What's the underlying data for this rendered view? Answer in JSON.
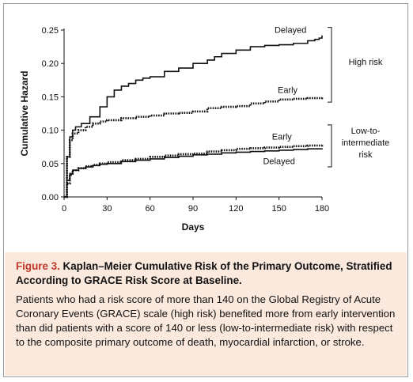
{
  "chart_data": {
    "type": "line",
    "xlabel": "Days",
    "ylabel": "Cumulative Hazard",
    "xlim": [
      0,
      180
    ],
    "ylim": [
      0,
      0.25
    ],
    "x_ticks": [
      "0",
      "30",
      "60",
      "90",
      "120",
      "150",
      "180"
    ],
    "y_ticks": [
      "0.00",
      "0.05",
      "0.10",
      "0.15",
      "0.20",
      "0.25"
    ],
    "grid": false,
    "series": [
      {
        "name": "Delayed",
        "group": "High risk",
        "style": "solid",
        "x": [
          0,
          2,
          4,
          6,
          8,
          12,
          18,
          25,
          30,
          35,
          40,
          45,
          50,
          55,
          60,
          70,
          80,
          90,
          100,
          105,
          110,
          120,
          130,
          140,
          150,
          160,
          170,
          175,
          178,
          180
        ],
        "y": [
          0,
          0.06,
          0.09,
          0.1,
          0.105,
          0.11,
          0.12,
          0.135,
          0.15,
          0.16,
          0.166,
          0.17,
          0.175,
          0.178,
          0.18,
          0.188,
          0.193,
          0.2,
          0.205,
          0.21,
          0.215,
          0.22,
          0.225,
          0.227,
          0.228,
          0.23,
          0.234,
          0.236,
          0.238,
          0.242
        ]
      },
      {
        "name": "Early",
        "group": "High risk",
        "style": "dotted",
        "x": [
          0,
          2,
          4,
          6,
          10,
          15,
          20,
          25,
          30,
          40,
          50,
          60,
          70,
          80,
          90,
          100,
          110,
          120,
          130,
          140,
          150,
          160,
          170,
          180
        ],
        "y": [
          0,
          0.06,
          0.085,
          0.095,
          0.1,
          0.105,
          0.11,
          0.113,
          0.115,
          0.118,
          0.12,
          0.122,
          0.125,
          0.126,
          0.128,
          0.133,
          0.135,
          0.136,
          0.14,
          0.143,
          0.146,
          0.147,
          0.148,
          0.149
        ]
      },
      {
        "name": "Early",
        "group": "Low-to-intermediate risk",
        "style": "dotted",
        "x": [
          0,
          2,
          4,
          6,
          10,
          15,
          20,
          25,
          30,
          40,
          50,
          60,
          70,
          80,
          90,
          100,
          110,
          120,
          130,
          140,
          150,
          160,
          170,
          180
        ],
        "y": [
          0,
          0.02,
          0.033,
          0.04,
          0.043,
          0.046,
          0.048,
          0.05,
          0.052,
          0.055,
          0.057,
          0.06,
          0.062,
          0.064,
          0.065,
          0.068,
          0.07,
          0.072,
          0.073,
          0.074,
          0.075,
          0.076,
          0.077,
          0.078
        ]
      },
      {
        "name": "Delayed",
        "group": "Low-to-intermediate risk",
        "style": "solid",
        "x": [
          0,
          2,
          4,
          6,
          10,
          15,
          20,
          25,
          30,
          40,
          50,
          60,
          70,
          80,
          90,
          100,
          110,
          120,
          130,
          140,
          150,
          160,
          170,
          180
        ],
        "y": [
          0,
          0.025,
          0.035,
          0.04,
          0.043,
          0.045,
          0.047,
          0.049,
          0.05,
          0.053,
          0.055,
          0.057,
          0.059,
          0.061,
          0.063,
          0.064,
          0.066,
          0.067,
          0.068,
          0.069,
          0.07,
          0.071,
          0.072,
          0.073
        ]
      }
    ],
    "annotations": {
      "high_delayed": "Delayed",
      "high_early": "Early",
      "low_early": "Early",
      "low_delayed": "Delayed",
      "high_risk_label": "High risk",
      "low_risk_label_lines": [
        "Low-to-",
        "intermediate",
        "risk"
      ]
    }
  },
  "caption": {
    "figure_label": "Figure 3.",
    "title": "Kaplan–Meier Cumulative Risk of the Primary Outcome, Stratified According to GRACE Risk Score at Baseline.",
    "body": "Patients who had a risk score of more than 140 on the Global Registry of Acute Coronary Events (GRACE) scale (high risk) benefited more from early intervention than did patients with a score of 140 or less (low-to-intermediate risk) with respect to the composite primary outcome of death, myocardial infarction, or stroke."
  },
  "colors": {
    "caption_background": "#fbe9de",
    "figure_label": "#c0392b",
    "curves": "#111111"
  }
}
